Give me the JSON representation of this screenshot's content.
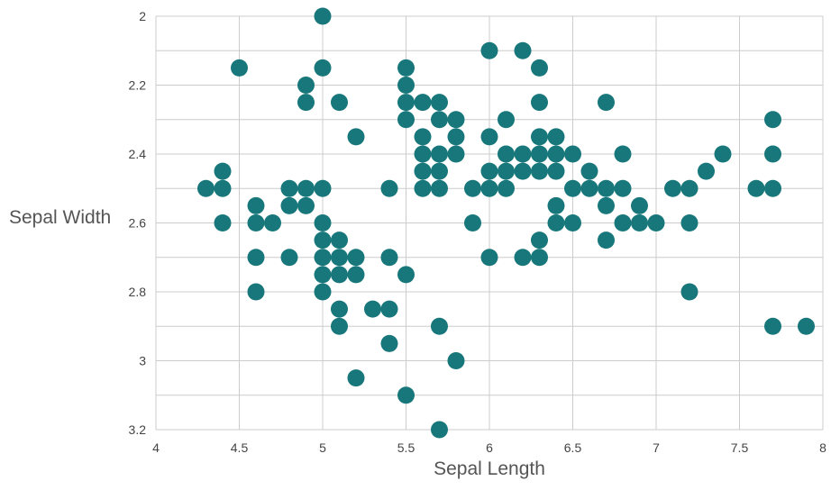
{
  "chart_data": {
    "type": "scatter",
    "title": "",
    "xlabel": "Sepal Length",
    "ylabel": "Sepal Width",
    "xlim": [
      4,
      8
    ],
    "ylim": [
      2,
      3.2
    ],
    "y_inverted": true,
    "grid": true,
    "legend": "none",
    "x_ticks": [
      "4",
      "4.5",
      "5",
      "5.5",
      "6",
      "6.5",
      "7",
      "7.5",
      "8"
    ],
    "y_ticks": [
      "2",
      "2.2",
      "2.4",
      "2.6",
      "2.8",
      "3",
      "3.2"
    ],
    "series": [
      {
        "color": "#17777a",
        "points": [
          [
            5.0,
            2.0
          ],
          [
            6.0,
            2.1
          ],
          [
            6.2,
            2.1
          ],
          [
            4.5,
            2.15
          ],
          [
            5.0,
            2.15
          ],
          [
            5.5,
            2.15
          ],
          [
            6.3,
            2.15
          ],
          [
            4.9,
            2.2
          ],
          [
            5.5,
            2.2
          ],
          [
            4.9,
            2.25
          ],
          [
            5.1,
            2.25
          ],
          [
            5.5,
            2.25
          ],
          [
            5.6,
            2.25
          ],
          [
            5.7,
            2.25
          ],
          [
            6.3,
            2.25
          ],
          [
            6.7,
            2.25
          ],
          [
            5.5,
            2.3
          ],
          [
            5.7,
            2.3
          ],
          [
            5.8,
            2.3
          ],
          [
            6.1,
            2.3
          ],
          [
            7.7,
            2.3
          ],
          [
            5.2,
            2.35
          ],
          [
            5.6,
            2.35
          ],
          [
            5.8,
            2.35
          ],
          [
            6.0,
            2.35
          ],
          [
            6.3,
            2.35
          ],
          [
            6.4,
            2.35
          ],
          [
            5.6,
            2.4
          ],
          [
            5.7,
            2.4
          ],
          [
            5.8,
            2.4
          ],
          [
            6.1,
            2.4
          ],
          [
            6.2,
            2.4
          ],
          [
            6.3,
            2.4
          ],
          [
            6.4,
            2.4
          ],
          [
            6.5,
            2.4
          ],
          [
            6.8,
            2.4
          ],
          [
            7.4,
            2.4
          ],
          [
            7.7,
            2.4
          ],
          [
            4.4,
            2.45
          ],
          [
            5.6,
            2.45
          ],
          [
            5.7,
            2.45
          ],
          [
            6.0,
            2.45
          ],
          [
            6.1,
            2.45
          ],
          [
            6.2,
            2.45
          ],
          [
            6.3,
            2.45
          ],
          [
            6.4,
            2.45
          ],
          [
            6.6,
            2.45
          ],
          [
            7.3,
            2.45
          ],
          [
            4.3,
            2.5
          ],
          [
            4.4,
            2.5
          ],
          [
            4.8,
            2.5
          ],
          [
            4.9,
            2.5
          ],
          [
            5.0,
            2.5
          ],
          [
            5.4,
            2.5
          ],
          [
            5.6,
            2.5
          ],
          [
            5.7,
            2.5
          ],
          [
            5.9,
            2.5
          ],
          [
            6.0,
            2.5
          ],
          [
            6.1,
            2.5
          ],
          [
            6.5,
            2.5
          ],
          [
            6.6,
            2.5
          ],
          [
            6.7,
            2.5
          ],
          [
            6.8,
            2.5
          ],
          [
            7.1,
            2.5
          ],
          [
            7.2,
            2.5
          ],
          [
            7.6,
            2.5
          ],
          [
            7.7,
            2.5
          ],
          [
            4.6,
            2.55
          ],
          [
            4.8,
            2.55
          ],
          [
            4.9,
            2.55
          ],
          [
            6.4,
            2.55
          ],
          [
            6.7,
            2.55
          ],
          [
            6.9,
            2.55
          ],
          [
            4.4,
            2.6
          ],
          [
            4.6,
            2.6
          ],
          [
            4.7,
            2.6
          ],
          [
            5.0,
            2.6
          ],
          [
            5.9,
            2.6
          ],
          [
            6.4,
            2.6
          ],
          [
            6.5,
            2.6
          ],
          [
            6.8,
            2.6
          ],
          [
            6.9,
            2.6
          ],
          [
            7.0,
            2.6
          ],
          [
            7.2,
            2.6
          ],
          [
            5.0,
            2.65
          ],
          [
            5.1,
            2.65
          ],
          [
            6.3,
            2.65
          ],
          [
            6.7,
            2.65
          ],
          [
            4.6,
            2.7
          ],
          [
            4.8,
            2.7
          ],
          [
            5.0,
            2.7
          ],
          [
            5.1,
            2.7
          ],
          [
            5.2,
            2.7
          ],
          [
            5.4,
            2.7
          ],
          [
            6.0,
            2.7
          ],
          [
            6.2,
            2.7
          ],
          [
            6.3,
            2.7
          ],
          [
            5.0,
            2.75
          ],
          [
            5.1,
            2.75
          ],
          [
            5.2,
            2.75
          ],
          [
            5.5,
            2.75
          ],
          [
            4.6,
            2.8
          ],
          [
            5.0,
            2.8
          ],
          [
            7.2,
            2.8
          ],
          [
            5.1,
            2.85
          ],
          [
            5.3,
            2.85
          ],
          [
            5.4,
            2.85
          ],
          [
            5.1,
            2.9
          ],
          [
            5.7,
            2.9
          ],
          [
            7.7,
            2.9
          ],
          [
            7.9,
            2.9
          ],
          [
            5.4,
            2.95
          ],
          [
            5.8,
            3.0
          ],
          [
            5.2,
            3.05
          ],
          [
            5.5,
            3.1
          ],
          [
            5.7,
            3.2
          ]
        ]
      }
    ]
  }
}
